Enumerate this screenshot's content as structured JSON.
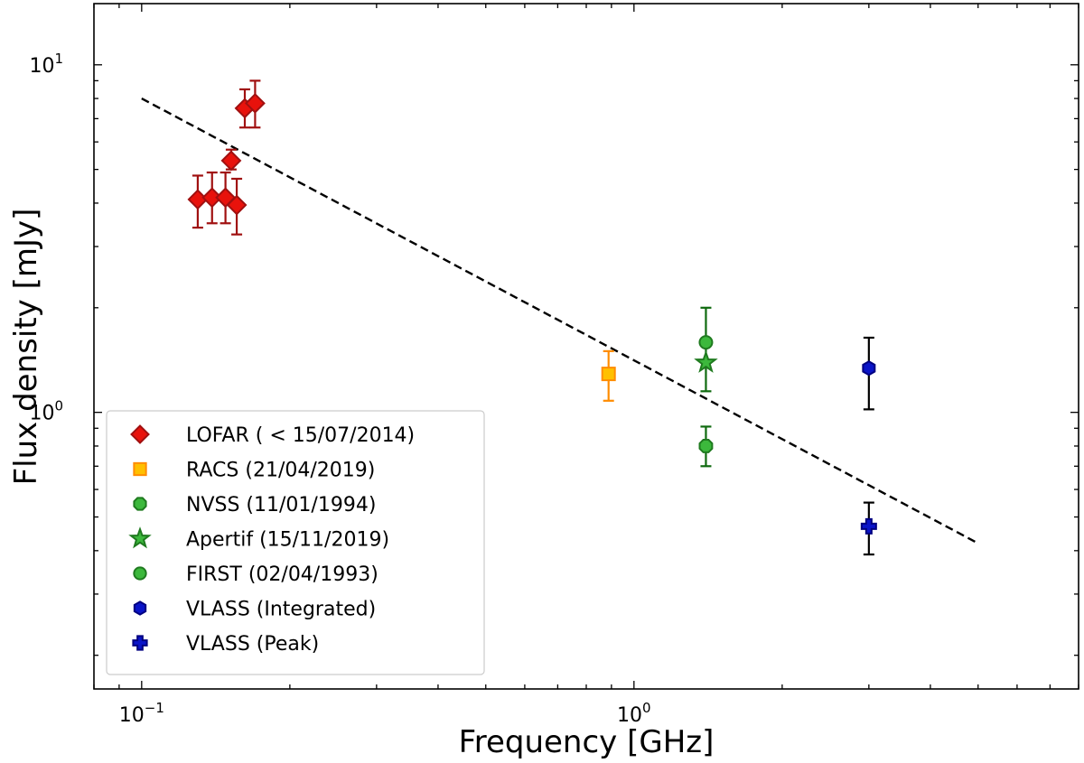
{
  "chart_data": {
    "type": "scatter",
    "title": "",
    "xlabel": "Frequency [GHz]",
    "ylabel": "Flux density [mJy]",
    "xscale": "log",
    "yscale": "log",
    "xlim": [
      0.08,
      8
    ],
    "ylim": [
      0.16,
      15
    ],
    "legend_position": "lower-left",
    "x_major_ticks": [
      {
        "value": 0.1,
        "base": "10",
        "exp": "−1"
      },
      {
        "value": 1,
        "base": "10",
        "exp": "0"
      }
    ],
    "y_major_ticks": [
      {
        "value": 1,
        "base": "10",
        "exp": "0"
      },
      {
        "value": 10,
        "base": "10",
        "exp": "1"
      }
    ],
    "fit_line": {
      "style": "dashed",
      "color": "#000000",
      "points": [
        [
          0.1,
          8.0
        ],
        [
          5.0,
          0.42
        ]
      ]
    },
    "series": [
      {
        "name": "LOFAR ( <  15/07/2014)",
        "marker": "diamond",
        "fill": "#e8120c",
        "edge": "#a01010",
        "ecolor": "#a01010",
        "points": [
          {
            "x": 0.13,
            "y": 4.1,
            "lo": 3.4,
            "hi": 4.8
          },
          {
            "x": 0.139,
            "y": 4.15,
            "lo": 3.5,
            "hi": 4.9
          },
          {
            "x": 0.148,
            "y": 4.15,
            "lo": 3.5,
            "hi": 4.9
          },
          {
            "x": 0.152,
            "y": 5.3,
            "lo": 5.0,
            "hi": 5.7
          },
          {
            "x": 0.156,
            "y": 3.95,
            "lo": 3.25,
            "hi": 4.7
          },
          {
            "x": 0.162,
            "y": 7.5,
            "lo": 6.6,
            "hi": 8.5
          },
          {
            "x": 0.17,
            "y": 7.75,
            "lo": 6.6,
            "hi": 9.0
          }
        ]
      },
      {
        "name": "RACS (21/04/2019)",
        "marker": "square",
        "fill": "#ffc000",
        "edge": "#ff8c00",
        "ecolor": "#ff8c00",
        "points": [
          {
            "x": 0.888,
            "y": 1.29,
            "lo": 1.08,
            "hi": 1.5
          }
        ]
      },
      {
        "name": "NVSS (11/01/1994)",
        "marker": "octagon",
        "fill": "#3cb83c",
        "edge": "#1f7a1f",
        "ecolor": "#0f6a0f",
        "points": [
          {
            "x": 1.4,
            "y": 0.8,
            "lo": 0.7,
            "hi": 0.91
          }
        ]
      },
      {
        "name": "Apertif (15/11/2019)",
        "marker": "star",
        "fill": "#3cb83c",
        "edge": "#1f7a1f",
        "ecolor": "#0f6a0f",
        "points": [
          {
            "x": 1.4,
            "y": 1.39,
            "lo": 1.15,
            "hi": 2.0
          }
        ]
      },
      {
        "name": "FIRST (02/04/1993)",
        "marker": "circle",
        "fill": "#3cb83c",
        "edge": "#1f7a1f",
        "ecolor": "#0f6a0f",
        "points": [
          {
            "x": 1.4,
            "y": 1.59,
            "lo": null,
            "hi": null
          }
        ]
      },
      {
        "name": "VLASS (Integrated)",
        "marker": "hexagon",
        "fill": "#0a14c8",
        "edge": "#000080",
        "ecolor": "#000000",
        "points": [
          {
            "x": 3.0,
            "y": 1.34,
            "lo": 1.02,
            "hi": 1.64
          }
        ]
      },
      {
        "name": "VLASS (Peak)",
        "marker": "plus",
        "fill": "#0a14c8",
        "edge": "#000080",
        "ecolor": "#000000",
        "points": [
          {
            "x": 3.0,
            "y": 0.47,
            "lo": 0.39,
            "hi": 0.55
          }
        ]
      }
    ]
  }
}
